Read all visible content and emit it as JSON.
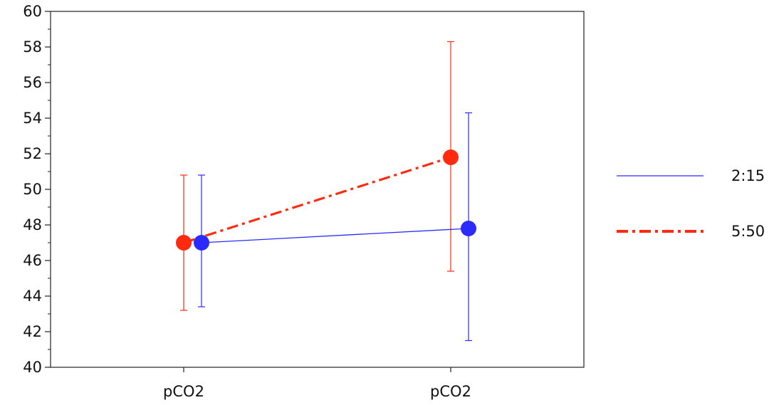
{
  "chart_data": {
    "type": "line",
    "title": "",
    "xlabel": "",
    "ylabel": "",
    "categories": [
      "pCO2",
      "pCO2"
    ],
    "ylim": [
      40,
      60
    ],
    "yticks": [
      40,
      42,
      44,
      46,
      48,
      50,
      52,
      54,
      56,
      58,
      60
    ],
    "grid": false,
    "legend_position": "right",
    "series": [
      {
        "name": "2:15",
        "color": "#2b2bff",
        "line_style": "solid",
        "values": [
          47.0,
          47.8
        ],
        "error_low": [
          43.4,
          41.5
        ],
        "error_high": [
          50.8,
          54.3
        ]
      },
      {
        "name": "5:50",
        "color": "#ff2a10",
        "line_style": "dash-dot",
        "values": [
          47.0,
          51.8
        ],
        "error_low": [
          43.2,
          45.4
        ],
        "error_high": [
          50.8,
          58.3
        ]
      }
    ]
  }
}
